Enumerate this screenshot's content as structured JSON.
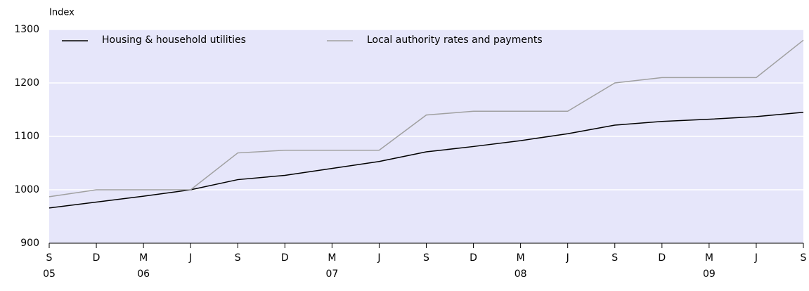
{
  "chart_data": {
    "type": "line",
    "y_label": "Index",
    "categories": [
      "S",
      "D",
      "M",
      "J",
      "S",
      "D",
      "M",
      "J",
      "S",
      "D",
      "M",
      "J",
      "S",
      "D",
      "M",
      "J",
      "S"
    ],
    "year_labels": [
      "05",
      null,
      "06",
      null,
      null,
      null,
      "07",
      null,
      null,
      null,
      "08",
      null,
      null,
      null,
      "09",
      null,
      null
    ],
    "series": [
      {
        "name": "Housing & household utilities",
        "color": "#000000",
        "values": [
          966,
          977,
          988,
          1000,
          1019,
          1027,
          1040,
          1053,
          1071,
          1081,
          1092,
          1105,
          1121,
          1128,
          1132,
          1137,
          1145
        ]
      },
      {
        "name": "Local authority rates and payments",
        "color": "#a0a0a0",
        "values": [
          987,
          1000,
          1000,
          1000,
          1069,
          1074,
          1074,
          1074,
          1140,
          1147,
          1147,
          1147,
          1200,
          1210,
          1210,
          1210,
          1280
        ]
      }
    ],
    "ylim": [
      900,
      1300
    ],
    "yticks": [
      900,
      1000,
      1100,
      1200,
      1300
    ],
    "grid": true,
    "background": "#e6e6fa"
  }
}
